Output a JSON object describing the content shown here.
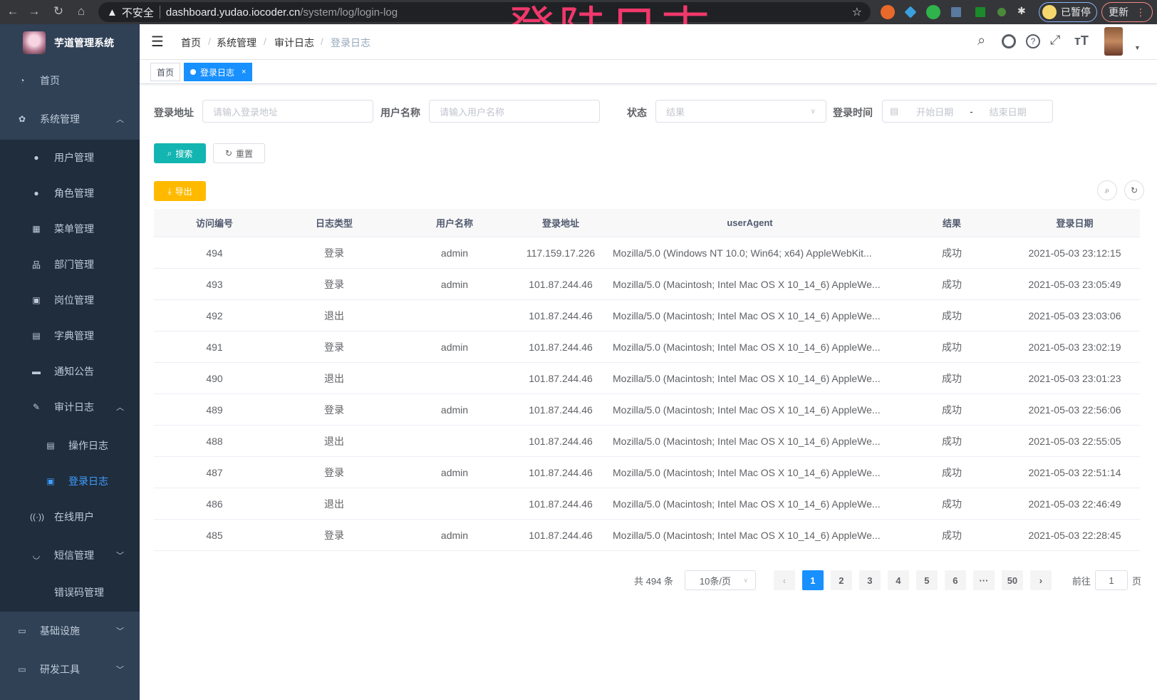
{
  "browser": {
    "insecure": "不安全",
    "url_host": "dashboard.yudao.iocoder.cn",
    "url_path": "/system/log/login-log",
    "paused": "已暂停",
    "update": "更新"
  },
  "watermark": "登陆日志",
  "app": {
    "title": "芋道管理系统"
  },
  "sidebar": {
    "items": [
      {
        "label": "首页",
        "icon": "dashboard-icon"
      },
      {
        "label": "系统管理",
        "icon": "gear-icon",
        "expanded": true
      },
      {
        "label": "用户管理",
        "icon": "user-icon"
      },
      {
        "label": "角色管理",
        "icon": "peoples-icon"
      },
      {
        "label": "菜单管理",
        "icon": "tree-table-icon"
      },
      {
        "label": "部门管理",
        "icon": "tree-icon"
      },
      {
        "label": "岗位管理",
        "icon": "post-icon"
      },
      {
        "label": "字典管理",
        "icon": "dict-icon"
      },
      {
        "label": "通知公告",
        "icon": "message-icon"
      },
      {
        "label": "审计日志",
        "icon": "log-icon",
        "expanded": true
      },
      {
        "label": "操作日志",
        "icon": "form-icon"
      },
      {
        "label": "登录日志",
        "icon": "logininfor-icon",
        "active": true
      },
      {
        "label": "在线用户",
        "icon": "online-icon"
      },
      {
        "label": "短信管理",
        "icon": "sms-icon",
        "expanded": false
      },
      {
        "label": "错误码管理",
        "icon": "code-icon"
      },
      {
        "label": "基础设施",
        "icon": "monitor-icon",
        "expanded": false
      },
      {
        "label": "研发工具",
        "icon": "tool-icon",
        "expanded": false
      }
    ]
  },
  "breadcrumb": [
    "首页",
    "系统管理",
    "审计日志",
    "登录日志"
  ],
  "tags": [
    {
      "label": "首页"
    },
    {
      "label": "登录日志",
      "active": true,
      "close": "×"
    }
  ],
  "filters": {
    "address": {
      "label": "登录地址",
      "placeholder": "请输入登录地址"
    },
    "username": {
      "label": "用户名称",
      "placeholder": "请输入用户名称"
    },
    "status": {
      "label": "状态",
      "placeholder": "结果"
    },
    "time": {
      "label": "登录时间",
      "start": "开始日期",
      "sep": "-",
      "end": "结束日期"
    }
  },
  "buttons": {
    "search": "搜索",
    "reset": "重置",
    "export": "导出"
  },
  "colors": {
    "sidebar": "#304156",
    "submenu": "#1f2d3d",
    "primary": "#1890ff",
    "search": "#13b5b1",
    "export": "#ffba00"
  },
  "table": {
    "columns": [
      "访问编号",
      "日志类型",
      "用户名称",
      "登录地址",
      "userAgent",
      "结果",
      "登录日期"
    ],
    "rows": [
      [
        "494",
        "登录",
        "admin",
        "117.159.17.226",
        "Mozilla/5.0 (Windows NT 10.0; Win64; x64) AppleWebKit...",
        "成功",
        "2021-05-03 23:12:15"
      ],
      [
        "493",
        "登录",
        "admin",
        "101.87.244.46",
        "Mozilla/5.0 (Macintosh; Intel Mac OS X 10_14_6) AppleWe...",
        "成功",
        "2021-05-03 23:05:49"
      ],
      [
        "492",
        "退出",
        "",
        "101.87.244.46",
        "Mozilla/5.0 (Macintosh; Intel Mac OS X 10_14_6) AppleWe...",
        "成功",
        "2021-05-03 23:03:06"
      ],
      [
        "491",
        "登录",
        "admin",
        "101.87.244.46",
        "Mozilla/5.0 (Macintosh; Intel Mac OS X 10_14_6) AppleWe...",
        "成功",
        "2021-05-03 23:02:19"
      ],
      [
        "490",
        "退出",
        "",
        "101.87.244.46",
        "Mozilla/5.0 (Macintosh; Intel Mac OS X 10_14_6) AppleWe...",
        "成功",
        "2021-05-03 23:01:23"
      ],
      [
        "489",
        "登录",
        "admin",
        "101.87.244.46",
        "Mozilla/5.0 (Macintosh; Intel Mac OS X 10_14_6) AppleWe...",
        "成功",
        "2021-05-03 22:56:06"
      ],
      [
        "488",
        "退出",
        "",
        "101.87.244.46",
        "Mozilla/5.0 (Macintosh; Intel Mac OS X 10_14_6) AppleWe...",
        "成功",
        "2021-05-03 22:55:05"
      ],
      [
        "487",
        "登录",
        "admin",
        "101.87.244.46",
        "Mozilla/5.0 (Macintosh; Intel Mac OS X 10_14_6) AppleWe...",
        "成功",
        "2021-05-03 22:51:14"
      ],
      [
        "486",
        "退出",
        "",
        "101.87.244.46",
        "Mozilla/5.0 (Macintosh; Intel Mac OS X 10_14_6) AppleWe...",
        "成功",
        "2021-05-03 22:46:49"
      ],
      [
        "485",
        "登录",
        "admin",
        "101.87.244.46",
        "Mozilla/5.0 (Macintosh; Intel Mac OS X 10_14_6) AppleWe...",
        "成功",
        "2021-05-03 22:28:45"
      ]
    ]
  },
  "pagination": {
    "total": "共 494 条",
    "page_size": "10条/页",
    "pages": [
      "1",
      "2",
      "3",
      "4",
      "5",
      "6",
      "···",
      "50"
    ],
    "current": "1",
    "goto_label": "前往",
    "goto_value": "1",
    "goto_suffix": "页"
  }
}
